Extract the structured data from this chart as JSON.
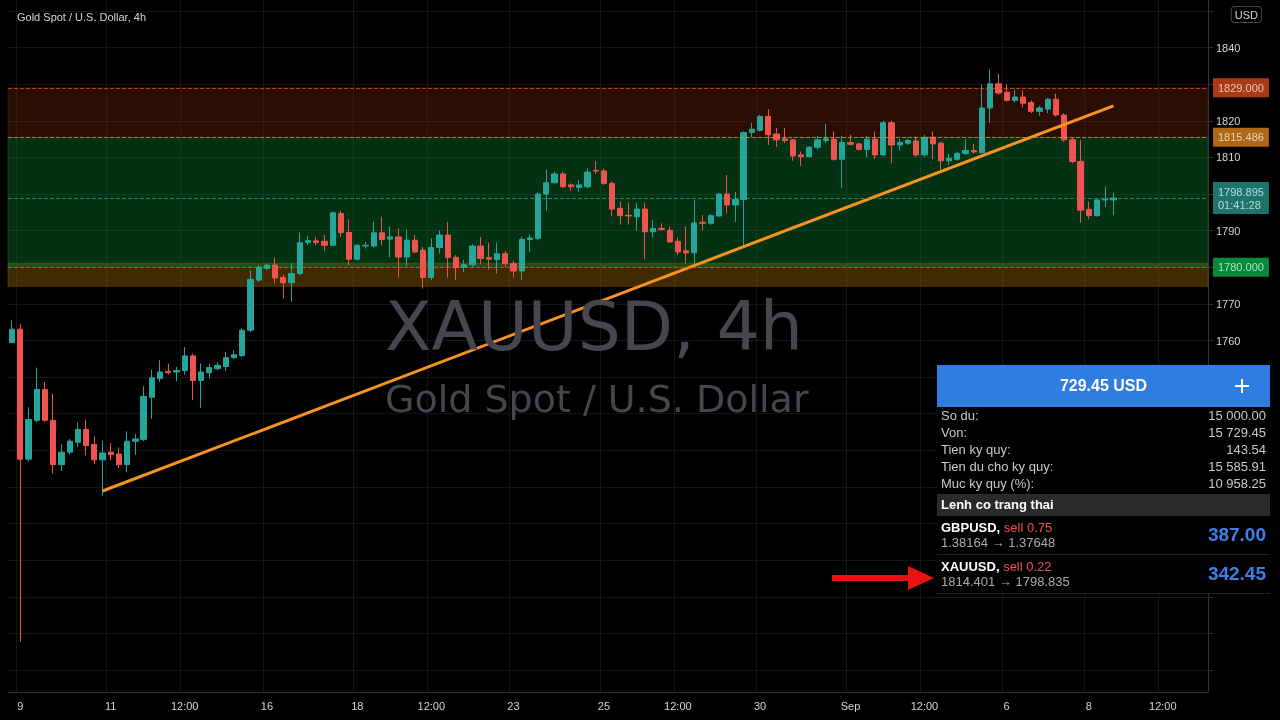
{
  "chart_data": [
    {
      "type": "candlestick",
      "title": "Gold Spot / U.S. Dollar, 4h",
      "ylabel": "USD",
      "annotations": [
        "XAUUSD, 4h",
        "Gold Spot / U.S. Dollar"
      ],
      "categories": [
        null,
        "9",
        null,
        null,
        null,
        null,
        null,
        null,
        null,
        null,
        null,
        null,
        "11",
        null,
        null,
        null,
        null,
        null,
        null,
        null,
        null,
        "12:00",
        null,
        null,
        null,
        null,
        null,
        null,
        null,
        null,
        null,
        "16",
        null,
        null,
        null,
        null,
        null,
        null,
        null,
        null,
        null,
        null,
        "18",
        null,
        null,
        null,
        null,
        null,
        null,
        null,
        null,
        "12:00",
        null,
        null,
        null,
        null,
        null,
        null,
        null,
        null,
        null,
        "23",
        null,
        null,
        null,
        null,
        null,
        null,
        null,
        null,
        null,
        null,
        "25",
        null,
        null,
        null,
        null,
        null,
        null,
        null,
        null,
        "12:00",
        null,
        null,
        null,
        null,
        null,
        null,
        null,
        null,
        null,
        "30",
        null,
        null,
        null,
        null,
        null,
        null,
        null,
        null,
        null,
        null,
        "Sep",
        null,
        null,
        null,
        null,
        null,
        null,
        null,
        null,
        "12:00",
        null,
        null,
        null,
        null,
        null,
        null,
        null,
        null,
        null,
        "6",
        null,
        null,
        null,
        null,
        null,
        null,
        null,
        null,
        null,
        "8",
        null,
        null,
        null,
        null,
        null,
        null,
        null,
        null,
        "12:00",
        null,
        null,
        null,
        null,
        null
      ],
      "series": [
        {
          "type": "candlestick",
          "ohlc": [
            [
              1759.4,
              1765.5,
              1759.4,
              1763.1
            ],
            [
              1763.1,
              1764.6,
              1677.8,
              1727.6
            ],
            [
              1727.6,
              1741.8,
              1727.0,
              1738.4
            ],
            [
              1738.2,
              1752.6,
              1737.7,
              1746.6
            ],
            [
              1746.6,
              1748.6,
              1737.8,
              1738.2
            ],
            [
              1738.2,
              1745.5,
              1723.7,
              1726.1
            ],
            [
              1726.1,
              1731.6,
              1724.4,
              1729.5
            ],
            [
              1729.5,
              1733.1,
              1728.8,
              1732.5
            ],
            [
              1732.2,
              1737.7,
              1730.9,
              1735.7
            ],
            [
              1735.7,
              1738.4,
              1728.6,
              1731.3
            ],
            [
              1731.6,
              1733.8,
              1726.3,
              1727.4
            ],
            [
              1727.4,
              1732.7,
              1717.6,
              1729.3
            ],
            [
              1729.5,
              1732.0,
              1727.2,
              1728.8
            ],
            [
              1729.0,
              1730.8,
              1725.2,
              1726.1
            ],
            [
              1726.1,
              1735.2,
              1724.0,
              1732.5
            ],
            [
              1732.5,
              1734.5,
              1728.8,
              1733.1
            ],
            [
              1733.0,
              1747.5,
              1732.5,
              1744.7
            ],
            [
              1744.5,
              1752.0,
              1738.6,
              1749.8
            ],
            [
              1749.6,
              1754.6,
              1748.7,
              1751.4
            ],
            [
              1751.6,
              1753.7,
              1750.7,
              1751.2
            ],
            [
              1751.4,
              1752.8,
              1748.9,
              1751.8
            ],
            [
              1751.8,
              1758.2,
              1750.7,
              1755.8
            ],
            [
              1755.8,
              1756.4,
              1743.8,
              1749.1
            ],
            [
              1749.1,
              1753.7,
              1741.6,
              1751.4
            ],
            [
              1751.2,
              1753.7,
              1749.6,
              1752.6
            ],
            [
              1752.3,
              1754.1,
              1751.9,
              1753.2
            ],
            [
              1752.9,
              1756.9,
              1751.7,
              1755.3
            ],
            [
              1755.3,
              1757.3,
              1755.0,
              1756.1
            ],
            [
              1755.9,
              1763.3,
              1755.5,
              1762.8
            ],
            [
              1762.8,
              1779.2,
              1762.3,
              1776.7
            ],
            [
              1776.5,
              1780.6,
              1776.0,
              1780.0
            ],
            [
              1779.7,
              1781.1,
              1779.2,
              1780.6
            ],
            [
              1780.6,
              1782.7,
              1775.6,
              1777.1
            ],
            [
              1777.2,
              1777.9,
              1771.5,
              1775.8
            ],
            [
              1775.8,
              1781.2,
              1770.6,
              1778.3
            ],
            [
              1778.3,
              1789.5,
              1777.9,
              1786.7
            ],
            [
              1786.8,
              1788.5,
              1786.1,
              1787.3
            ],
            [
              1787.2,
              1788.3,
              1786.0,
              1786.8
            ],
            [
              1787.1,
              1788.8,
              1784.4,
              1786.0
            ],
            [
              1786.0,
              1795.2,
              1785.8,
              1794.9
            ],
            [
              1794.7,
              1795.4,
              1788.3,
              1789.5
            ],
            [
              1789.5,
              1793.1,
              1780.6,
              1782.2
            ],
            [
              1782.2,
              1786.3,
              1781.9,
              1786.0
            ],
            [
              1785.8,
              1786.9,
              1785.1,
              1786.0
            ],
            [
              1785.8,
              1792.4,
              1785.4,
              1789.4
            ],
            [
              1789.4,
              1793.8,
              1786.0,
              1787.6
            ],
            [
              1787.7,
              1791.2,
              1782.7,
              1788.3
            ],
            [
              1788.3,
              1790.6,
              1777.2,
              1782.8
            ],
            [
              1782.8,
              1790.3,
              1780.4,
              1787.4
            ],
            [
              1787.4,
              1788.8,
              1783.8,
              1784.2
            ],
            [
              1784.7,
              1785.6,
              1774.2,
              1777.2
            ],
            [
              1777.2,
              1787.9,
              1776.5,
              1785.4
            ],
            [
              1785.4,
              1790.1,
              1783.8,
              1788.8
            ],
            [
              1788.8,
              1792.4,
              1777.2,
              1782.7
            ],
            [
              1782.7,
              1783.3,
              1776.5,
              1779.9
            ],
            [
              1780.0,
              1782.0,
              1778.7,
              1780.7
            ],
            [
              1780.7,
              1786.3,
              1780.1,
              1785.8
            ],
            [
              1785.8,
              1788.3,
              1780.8,
              1782.4
            ],
            [
              1782.7,
              1786.7,
              1779.4,
              1782.2
            ],
            [
              1782.1,
              1786.7,
              1778.3,
              1783.7
            ],
            [
              1783.7,
              1784.4,
              1780.1,
              1781.0
            ],
            [
              1781.0,
              1781.9,
              1777.2,
              1779.0
            ],
            [
              1779.0,
              1788.3,
              1776.5,
              1787.6
            ],
            [
              1787.6,
              1789.0,
              1784.2,
              1788.0
            ],
            [
              1787.9,
              1800.4,
              1787.4,
              1800.0
            ],
            [
              1800.0,
              1806.6,
              1795.4,
              1803.1
            ],
            [
              1803.1,
              1806.1,
              1802.9,
              1805.5
            ],
            [
              1805.5,
              1806.1,
              1801.6,
              1802.0
            ],
            [
              1802.5,
              1802.9,
              1800.9,
              1802.0
            ],
            [
              1801.8,
              1803.8,
              1800.6,
              1802.5
            ],
            [
              1802.0,
              1807.0,
              1801.5,
              1806.0
            ],
            [
              1806.5,
              1809.0,
              1805.5,
              1806.3
            ],
            [
              1806.3,
              1807.0,
              1802.5,
              1802.9
            ],
            [
              1802.9,
              1803.4,
              1794.0,
              1795.9
            ],
            [
              1796.1,
              1797.9,
              1791.7,
              1794.1
            ],
            [
              1794.2,
              1797.6,
              1791.7,
              1794.0
            ],
            [
              1793.8,
              1797.6,
              1790.0,
              1795.9
            ],
            [
              1795.9,
              1797.6,
              1782.2,
              1789.7
            ],
            [
              1789.7,
              1792.9,
              1788.1,
              1790.6
            ],
            [
              1790.6,
              1792.0,
              1790.0,
              1790.3
            ],
            [
              1790.1,
              1791.1,
              1786.7,
              1786.9
            ],
            [
              1787.1,
              1788.1,
              1783.3,
              1784.2
            ],
            [
              1784.5,
              1791.1,
              1781.0,
              1783.9
            ],
            [
              1784.0,
              1798.4,
              1780.8,
              1792.1
            ],
            [
              1792.3,
              1794.3,
              1790.1,
              1792.0
            ],
            [
              1792.0,
              1794.5,
              1791.5,
              1794.1
            ],
            [
              1794.0,
              1800.2,
              1793.8,
              1800.0
            ],
            [
              1800.0,
              1805.2,
              1794.7,
              1797.0
            ],
            [
              1797.0,
              1800.6,
              1792.4,
              1798.5
            ],
            [
              1798.5,
              1817.1,
              1786.0,
              1816.8
            ],
            [
              1816.8,
              1819.4,
              1815.5,
              1817.7
            ],
            [
              1817.4,
              1821.6,
              1817.1,
              1821.2
            ],
            [
              1821.2,
              1823.2,
              1813.4,
              1816.2
            ],
            [
              1816.4,
              1818.0,
              1812.8,
              1814.8
            ],
            [
              1815.1,
              1818.0,
              1813.9,
              1814.6
            ],
            [
              1814.8,
              1815.0,
              1809.1,
              1810.4
            ],
            [
              1810.7,
              1811.6,
              1807.7,
              1810.2
            ],
            [
              1810.2,
              1813.1,
              1810.0,
              1812.8
            ],
            [
              1812.8,
              1815.9,
              1812.2,
              1814.8
            ],
            [
              1814.6,
              1819.2,
              1813.9,
              1815.1
            ],
            [
              1815.0,
              1817.1,
              1809.1,
              1809.5
            ],
            [
              1809.5,
              1815.9,
              1801.6,
              1814.1
            ],
            [
              1814.1,
              1816.2,
              1813.2,
              1813.6
            ],
            [
              1813.7,
              1814.1,
              1811.9,
              1812.2
            ],
            [
              1812.2,
              1815.9,
              1810.0,
              1815.0
            ],
            [
              1815.0,
              1817.1,
              1809.5,
              1810.7
            ],
            [
              1810.7,
              1820.0,
              1810.5,
              1819.5
            ],
            [
              1819.5,
              1820.0,
              1808.4,
              1813.4
            ],
            [
              1813.4,
              1815.0,
              1811.9,
              1814.1
            ],
            [
              1813.9,
              1815.2,
              1813.4,
              1814.6
            ],
            [
              1814.5,
              1815.7,
              1810.2,
              1810.7
            ],
            [
              1810.7,
              1816.2,
              1810.2,
              1815.5
            ],
            [
              1815.5,
              1817.1,
              1809.5,
              1813.7
            ],
            [
              1813.9,
              1814.3,
              1806.6,
              1809.1
            ],
            [
              1809.1,
              1811.0,
              1808.0,
              1809.8
            ],
            [
              1809.5,
              1811.6,
              1809.1,
              1811.1
            ],
            [
              1811.1,
              1815.0,
              1810.7,
              1811.9
            ],
            [
              1811.9,
              1813.7,
              1811.0,
              1811.5
            ],
            [
              1811.3,
              1829.9,
              1811.2,
              1823.5
            ],
            [
              1823.5,
              1834.0,
              1819.4,
              1830.1
            ],
            [
              1830.1,
              1832.9,
              1827.1,
              1827.6
            ],
            [
              1827.8,
              1830.1,
              1825.3,
              1825.6
            ],
            [
              1825.6,
              1828.5,
              1825.0,
              1826.5
            ],
            [
              1826.5,
              1828.3,
              1823.7,
              1824.8
            ],
            [
              1825.0,
              1825.6,
              1822.1,
              1822.6
            ],
            [
              1822.6,
              1824.1,
              1821.4,
              1823.5
            ],
            [
              1823.2,
              1826.2,
              1822.1,
              1825.9
            ],
            [
              1825.9,
              1827.4,
              1821.2,
              1821.6
            ],
            [
              1821.6,
              1822.1,
              1814.3,
              1814.8
            ],
            [
              1814.8,
              1815.3,
              1808.4,
              1808.9
            ],
            [
              1808.9,
              1814.8,
              1792.2,
              1795.6
            ],
            [
              1795.8,
              1797.9,
              1793.1,
              1794.1
            ],
            [
              1794.1,
              1798.6,
              1793.8,
              1798.4
            ],
            [
              1798.4,
              1802.0,
              1796.5,
              1798.6
            ],
            [
              1798.4,
              1800.4,
              1794.2,
              1798.9
            ],
            null,
            null,
            null,
            null,
            null,
            null,
            null,
            null,
            null,
            null,
            null
          ]
        },
        {
          "type": "line",
          "color": "#f7931e",
          "values": [
            null,
            null,
            null,
            null,
            null,
            null,
            null,
            null,
            null,
            null,
            null,
            1718.9,
            null,
            null,
            null,
            null,
            null,
            null,
            null,
            null,
            null,
            null,
            null,
            null,
            null,
            null,
            null,
            null,
            null,
            null,
            null,
            null,
            null,
            null,
            null,
            null,
            null,
            null,
            null,
            null,
            null,
            null,
            null,
            null,
            null,
            null,
            null,
            null,
            null,
            null,
            null,
            null,
            null,
            null,
            null,
            null,
            null,
            null,
            null,
            null,
            null,
            null,
            null,
            null,
            null,
            null,
            null,
            null,
            null,
            null,
            null,
            null,
            null,
            null,
            null,
            null,
            null,
            null,
            null,
            null,
            null,
            null,
            null,
            null,
            null,
            null,
            null,
            null,
            null,
            null,
            null,
            null,
            null,
            null,
            null,
            null,
            null,
            null,
            null,
            null,
            null,
            null,
            null,
            null,
            null,
            null,
            null,
            null,
            null,
            null,
            null,
            null,
            null,
            null,
            null,
            null,
            null,
            null,
            null,
            null,
            null,
            null,
            null,
            null,
            null,
            null,
            null,
            null,
            null,
            null,
            null,
            null,
            null,
            null,
            1824.1,
            null,
            null,
            null,
            null,
            null,
            null,
            null,
            null,
            null,
            null,
            null
          ]
        }
      ],
      "ylim": [
        1664,
        1853
      ],
      "yticks": [
        {
          "value": 1670,
          "label": null
        },
        {
          "value": 1680,
          "label": null
        },
        {
          "value": 1690,
          "label": null
        },
        {
          "value": 1700,
          "label": null
        },
        {
          "value": 1710,
          "label": null
        },
        {
          "value": 1720,
          "label": null
        },
        {
          "value": 1730,
          "label": null
        },
        {
          "value": 1740,
          "label": null
        },
        {
          "value": 1750,
          "label": null
        },
        1760,
        1770,
        {
          "value": 1780,
          "label": null
        },
        1790,
        {
          "value": 1800,
          "label": null
        },
        1810,
        1820,
        {
          "value": 1830,
          "label": null
        },
        1840,
        {
          "value": 1850,
          "label": null
        }
      ],
      "grid": true,
      "ref_lines": [
        {
          "axis": "y",
          "value": 1829,
          "label": "1829.000",
          "color": "#f4511e"
        },
        {
          "axis": "y",
          "value": 1815.486,
          "label": "1815.486",
          "color": "#f7931e"
        },
        {
          "axis": "y",
          "value": 1798.895,
          "label": "1798.895\n01:41:28",
          "color": "#26a69a"
        },
        {
          "axis": "y",
          "value": 1780,
          "label": "1780.000",
          "color": "#00c853"
        }
      ],
      "bands": [
        {
          "axis": "y",
          "from": 1774.8,
          "to": 1781.1,
          "color": "#a06a00"
        },
        {
          "axis": "y",
          "from": 1815.486,
          "to": 1829,
          "color": "#6b2208"
        },
        {
          "axis": "y",
          "from": 1780,
          "to": 1815.486,
          "color": "#0d7a30"
        }
      ]
    },
    {
      "type": "other",
      "title": "729.45 USD",
      "annotations": [
        "So du:",
        "15 000.00",
        "Von:",
        "15 729.45",
        "Tien ky quy:",
        "143.54",
        "Tien du cho ky quy:",
        "15 585.91",
        "Muc ky quy (%):",
        "10 958.25",
        "Lenh co trang thai",
        "GBPUSD,",
        "sell 0.75",
        "1.38164 → 1.37648",
        "387.00",
        "XAUUSD,",
        "sell 0.22",
        "1814.401 → 1798.835",
        "342.45"
      ]
    }
  ]
}
